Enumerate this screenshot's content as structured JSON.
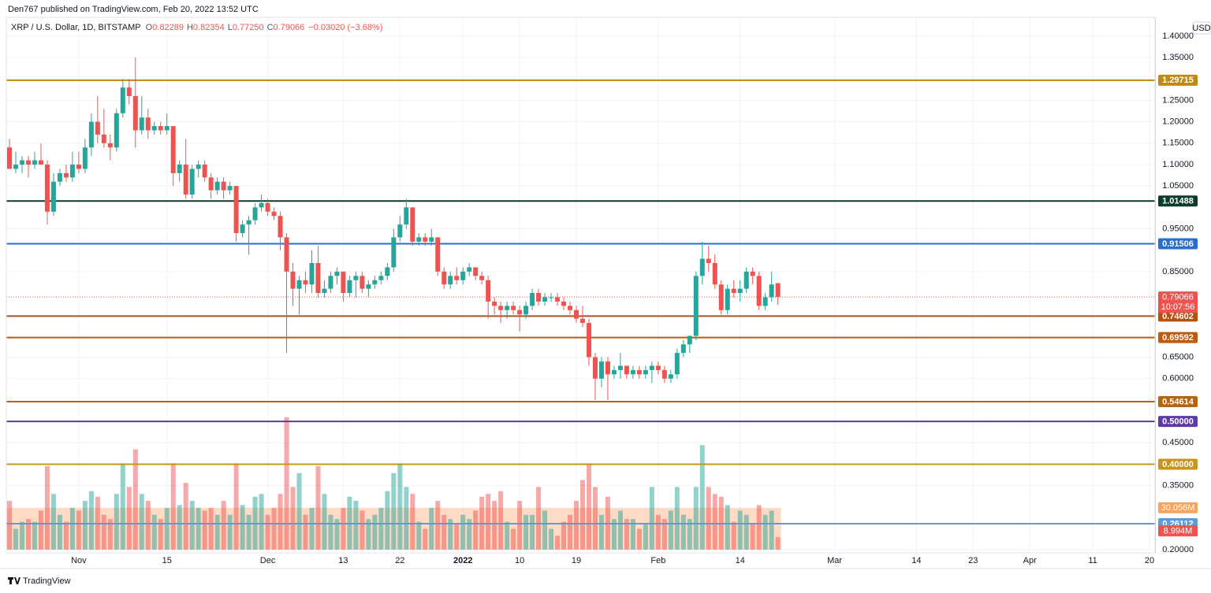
{
  "header": {
    "published": "Den767 published on TradingView.com, Feb 20, 2022 13:52 UTC",
    "brand": "TradingView"
  },
  "chart_data": {
    "type": "candlestick",
    "title": "XRP / U.S. Dollar, 1D, BITSTAMP",
    "currency": "USD",
    "ohlc_letters": [
      "O",
      "H",
      "L",
      "C"
    ],
    "legend_values": [
      "0.82289",
      "0.82354",
      "0.77250",
      "0.79066"
    ],
    "change_label": "−0.03020 (−3.68%)",
    "countdown": "10:07:56",
    "categories": [
      null,
      null,
      null,
      null,
      null,
      null,
      null,
      null,
      null,
      null,
      null,
      "Nov",
      null,
      null,
      null,
      null,
      null,
      null,
      null,
      null,
      null,
      null,
      null,
      null,
      null,
      "15",
      null,
      null,
      null,
      null,
      null,
      null,
      null,
      null,
      null,
      null,
      null,
      null,
      null,
      null,
      null,
      "Dec",
      null,
      null,
      null,
      null,
      null,
      null,
      null,
      null,
      null,
      null,
      null,
      "13",
      null,
      null,
      null,
      null,
      null,
      null,
      null,
      null,
      "22",
      null,
      null,
      null,
      null,
      null,
      null,
      null,
      null,
      null,
      "2022",
      null,
      null,
      null,
      null,
      null,
      null,
      null,
      null,
      "10",
      null,
      null,
      null,
      null,
      null,
      null,
      null,
      null,
      "19",
      null,
      null,
      null,
      null,
      null,
      null,
      null,
      null,
      null,
      null,
      null,
      null,
      "Feb",
      null,
      null,
      null,
      null,
      null,
      null,
      null,
      null,
      null,
      null,
      null,
      null,
      "14",
      null,
      null,
      null,
      null,
      null,
      null,
      null,
      null,
      null,
      null,
      null,
      null,
      null,
      null,
      "Mar",
      null,
      null,
      null,
      null,
      null,
      null,
      null,
      null,
      null,
      null,
      null,
      null,
      "14",
      null,
      null,
      null,
      null,
      null,
      null,
      null,
      null,
      "23",
      null,
      null,
      null,
      null,
      null,
      null,
      null,
      null,
      "Apr",
      null,
      null,
      null,
      null,
      null,
      null,
      null,
      null,
      null,
      "11",
      null,
      null,
      null,
      null,
      null,
      null,
      null,
      null,
      "20"
    ],
    "open": [
      1.14,
      1.09,
      1.1,
      1.11,
      1.1,
      1.11,
      1.1,
      0.99,
      1.06,
      1.08,
      1.07,
      1.1,
      1.09,
      1.14,
      1.2,
      1.17,
      1.15,
      1.14,
      1.22,
      1.28,
      1.26,
      1.18,
      1.21,
      1.18,
      1.19,
      1.18,
      1.19,
      1.08,
      1.1,
      1.03,
      1.09,
      1.1,
      1.07,
      1.04,
      1.06,
      1.04,
      1.05,
      0.94,
      0.96,
      0.97,
      1.0,
      1.01,
      0.99,
      0.98,
      0.93,
      0.85,
      0.81,
      0.83,
      0.82,
      0.87,
      0.8,
      0.81,
      0.84,
      0.85,
      0.8,
      0.83,
      0.84,
      0.81,
      0.82,
      0.83,
      0.84,
      0.86,
      0.93,
      0.96,
      1.0,
      0.92,
      0.93,
      0.92,
      0.93,
      0.85,
      0.82,
      0.84,
      0.83,
      0.85,
      0.86,
      0.84,
      0.83,
      0.78,
      0.77,
      0.76,
      0.77,
      0.76,
      0.75,
      0.77,
      0.8,
      0.78,
      0.79,
      0.79,
      0.78,
      0.77,
      0.76,
      0.74,
      0.73,
      0.65,
      0.6,
      0.64,
      0.61,
      0.62,
      0.63,
      0.61,
      0.62,
      0.61,
      0.62,
      0.63,
      0.62,
      0.6,
      0.61,
      0.66,
      0.68,
      0.7,
      0.84,
      0.88,
      0.87,
      0.82,
      0.76,
      0.81,
      0.8,
      0.81,
      0.85,
      0.84,
      0.77,
      0.79,
      0.82289,
      null,
      null,
      null,
      null,
      null,
      null,
      null,
      null,
      null,
      null,
      null,
      null,
      null,
      null,
      null,
      null,
      null,
      null,
      null,
      null,
      null,
      null,
      null,
      null,
      null,
      null,
      null,
      null,
      null,
      null,
      null,
      null,
      null,
      null,
      null,
      null,
      null,
      null,
      null,
      null,
      null,
      null,
      null,
      null,
      null,
      null,
      null,
      null,
      null,
      null,
      null,
      null,
      null,
      null,
      null,
      null,
      null,
      null,
      null
    ],
    "high": [
      1.16,
      1.13,
      1.12,
      1.12,
      1.13,
      1.15,
      1.11,
      1.08,
      1.09,
      1.1,
      1.13,
      1.13,
      1.16,
      1.22,
      1.26,
      1.23,
      1.17,
      1.23,
      1.3,
      1.3,
      1.35,
      1.26,
      1.23,
      1.2,
      1.2,
      1.22,
      1.19,
      1.11,
      1.16,
      1.1,
      1.11,
      1.11,
      1.08,
      1.07,
      1.07,
      1.06,
      1.05,
      0.97,
      0.98,
      1.01,
      1.03,
      1.02,
      1.0,
      0.99,
      0.94,
      0.87,
      0.84,
      0.85,
      0.9,
      0.91,
      0.83,
      0.85,
      0.86,
      0.85,
      0.84,
      0.85,
      0.85,
      0.83,
      0.84,
      0.85,
      0.87,
      0.95,
      0.98,
      1.02,
      1.0,
      0.94,
      0.94,
      0.95,
      0.93,
      0.86,
      0.85,
      0.86,
      0.86,
      0.87,
      0.86,
      0.85,
      0.84,
      0.79,
      0.78,
      0.78,
      0.78,
      0.77,
      0.78,
      0.81,
      0.81,
      0.8,
      0.8,
      0.8,
      0.79,
      0.78,
      0.77,
      0.77,
      0.74,
      0.66,
      0.65,
      0.65,
      0.63,
      0.66,
      0.63,
      0.63,
      0.63,
      0.63,
      0.64,
      0.64,
      0.63,
      0.62,
      0.67,
      0.69,
      0.7,
      0.85,
      0.92,
      0.91,
      0.89,
      0.83,
      0.82,
      0.83,
      0.83,
      0.86,
      0.86,
      0.85,
      0.8,
      0.85,
      0.82354,
      null,
      null,
      null,
      null,
      null,
      null,
      null,
      null,
      null,
      null,
      null,
      null,
      null,
      null,
      null,
      null,
      null,
      null,
      null,
      null,
      null,
      null,
      null,
      null,
      null,
      null,
      null,
      null,
      null,
      null,
      null,
      null,
      null,
      null,
      null,
      null,
      null,
      null,
      null,
      null,
      null,
      null,
      null,
      null,
      null,
      null,
      null,
      null,
      null,
      null,
      null,
      null,
      null,
      null,
      null,
      null,
      null,
      null,
      null
    ],
    "low": [
      1.09,
      1.08,
      1.08,
      1.07,
      1.09,
      1.1,
      0.96,
      0.98,
      1.05,
      1.06,
      1.06,
      1.08,
      1.08,
      1.12,
      1.15,
      1.14,
      1.11,
      1.13,
      1.21,
      1.24,
      1.14,
      1.17,
      1.16,
      1.17,
      1.17,
      1.17,
      1.05,
      1.06,
      1.02,
      1.02,
      1.07,
      1.06,
      1.02,
      1.03,
      1.02,
      1.03,
      0.92,
      0.93,
      0.89,
      0.96,
      0.99,
      0.98,
      0.97,
      0.9,
      0.66,
      0.77,
      0.75,
      0.8,
      0.8,
      0.79,
      0.79,
      0.8,
      0.82,
      0.78,
      0.79,
      0.79,
      0.8,
      0.79,
      0.81,
      0.82,
      0.83,
      0.85,
      0.92,
      0.95,
      0.91,
      0.91,
      0.91,
      0.91,
      0.84,
      0.81,
      0.81,
      0.82,
      0.82,
      0.84,
      0.83,
      0.82,
      0.74,
      0.75,
      0.73,
      0.74,
      0.75,
      0.71,
      0.74,
      0.76,
      0.77,
      0.77,
      0.78,
      0.77,
      0.76,
      0.75,
      0.73,
      0.72,
      0.63,
      0.55,
      0.58,
      0.55,
      0.6,
      0.6,
      0.6,
      0.6,
      0.6,
      0.6,
      0.59,
      0.61,
      0.59,
      0.59,
      0.6,
      0.65,
      0.66,
      0.69,
      0.82,
      0.85,
      0.81,
      0.75,
      0.75,
      0.79,
      0.78,
      0.8,
      0.82,
      0.76,
      0.76,
      0.78,
      0.7725,
      null,
      null,
      null,
      null,
      null,
      null,
      null,
      null,
      null,
      null,
      null,
      null,
      null,
      null,
      null,
      null,
      null,
      null,
      null,
      null,
      null,
      null,
      null,
      null,
      null,
      null,
      null,
      null,
      null,
      null,
      null,
      null,
      null,
      null,
      null,
      null,
      null,
      null,
      null,
      null,
      null,
      null,
      null,
      null,
      null,
      null,
      null,
      null,
      null,
      null,
      null,
      null,
      null,
      null,
      null,
      null,
      null,
      null,
      null
    ],
    "close": [
      1.09,
      1.1,
      1.11,
      1.1,
      1.11,
      1.1,
      0.99,
      1.06,
      1.08,
      1.07,
      1.1,
      1.09,
      1.14,
      1.2,
      1.17,
      1.15,
      1.14,
      1.22,
      1.28,
      1.26,
      1.18,
      1.21,
      1.18,
      1.19,
      1.18,
      1.19,
      1.08,
      1.1,
      1.03,
      1.09,
      1.1,
      1.07,
      1.04,
      1.06,
      1.04,
      1.05,
      0.94,
      0.96,
      0.97,
      1.0,
      1.01,
      0.99,
      0.98,
      0.93,
      0.85,
      0.81,
      0.83,
      0.82,
      0.87,
      0.8,
      0.81,
      0.84,
      0.85,
      0.8,
      0.83,
      0.84,
      0.81,
      0.82,
      0.83,
      0.84,
      0.86,
      0.93,
      0.96,
      1.0,
      0.92,
      0.93,
      0.92,
      0.93,
      0.85,
      0.82,
      0.84,
      0.83,
      0.85,
      0.86,
      0.84,
      0.83,
      0.78,
      0.77,
      0.76,
      0.77,
      0.76,
      0.75,
      0.77,
      0.8,
      0.78,
      0.79,
      0.79,
      0.78,
      0.77,
      0.76,
      0.74,
      0.73,
      0.65,
      0.6,
      0.64,
      0.61,
      0.62,
      0.63,
      0.61,
      0.62,
      0.61,
      0.62,
      0.63,
      0.62,
      0.6,
      0.61,
      0.66,
      0.68,
      0.7,
      0.84,
      0.88,
      0.87,
      0.82,
      0.76,
      0.81,
      0.8,
      0.81,
      0.85,
      0.84,
      0.77,
      0.79,
      0.82,
      0.79066,
      null,
      null,
      null,
      null,
      null,
      null,
      null,
      null,
      null,
      null,
      null,
      null,
      null,
      null,
      null,
      null,
      null,
      null,
      null,
      null,
      null,
      null,
      null,
      null,
      null,
      null,
      null,
      null,
      null,
      null,
      null,
      null,
      null,
      null,
      null,
      null,
      null,
      null,
      null,
      null,
      null,
      null,
      null,
      null,
      null,
      null,
      null,
      null,
      null,
      null,
      null,
      null,
      null,
      null,
      null,
      null,
      null,
      null,
      null
    ],
    "volume": [
      35,
      15,
      20,
      22,
      20,
      28,
      60,
      40,
      25,
      20,
      30,
      28,
      35,
      42,
      38,
      25,
      22,
      40,
      62,
      45,
      72,
      40,
      35,
      25,
      22,
      30,
      62,
      32,
      48,
      35,
      30,
      28,
      30,
      25,
      35,
      25,
      62,
      32,
      25,
      38,
      40,
      25,
      30,
      40,
      95,
      45,
      55,
      25,
      30,
      60,
      40,
      25,
      22,
      30,
      38,
      35,
      28,
      22,
      25,
      30,
      42,
      55,
      62,
      45,
      40,
      20,
      15,
      30,
      35,
      25,
      22,
      18,
      25,
      22,
      28,
      38,
      40,
      35,
      42,
      20,
      15,
      35,
      25,
      25,
      45,
      28,
      15,
      10,
      20,
      25,
      35,
      50,
      62,
      45,
      25,
      38,
      22,
      28,
      22,
      22,
      15,
      18,
      45,
      25,
      22,
      28,
      45,
      25,
      22,
      45,
      75,
      45,
      40,
      38,
      32,
      20,
      28,
      25,
      18,
      32,
      25,
      28,
      8.994,
      null,
      null,
      null,
      null,
      null,
      null,
      null,
      null,
      null,
      null,
      null,
      null,
      null,
      null,
      null,
      null,
      null,
      null,
      null,
      null,
      null,
      null,
      null,
      null,
      null,
      null,
      null,
      null,
      null,
      null,
      null,
      null,
      null,
      null,
      null,
      null,
      null,
      null,
      null,
      null,
      null,
      null,
      null,
      null,
      null,
      null,
      null,
      null,
      null,
      null,
      null,
      null,
      null,
      null,
      null,
      null,
      null,
      null,
      null
    ],
    "volume_value_labels": [
      null,
      null,
      null,
      null,
      null,
      null,
      null,
      null,
      null,
      null,
      null,
      null,
      null,
      null,
      null,
      null,
      null,
      null,
      null,
      null,
      null,
      null,
      null,
      null,
      null,
      null,
      null,
      null,
      null,
      null,
      null,
      null,
      null,
      null,
      null,
      null,
      null,
      null,
      null,
      null,
      null,
      null,
      null,
      null,
      null,
      null,
      null,
      null,
      null,
      null,
      null,
      null,
      null,
      null,
      null,
      null,
      null,
      null,
      null,
      null,
      null,
      null,
      null,
      null,
      null,
      null,
      null,
      null,
      null,
      null,
      null,
      null,
      null,
      null,
      null,
      null,
      null,
      null,
      null,
      null,
      null,
      null,
      null,
      null,
      null,
      null,
      null,
      null,
      null,
      null,
      null,
      null,
      null,
      null,
      null,
      null,
      null,
      null,
      null,
      null,
      null,
      null,
      null,
      null,
      null,
      null,
      null,
      null,
      null,
      null,
      null,
      null,
      null,
      null,
      null,
      null,
      null,
      null,
      null,
      null,
      null,
      null,
      "8.994M",
      null,
      null,
      null,
      null,
      null,
      null,
      null,
      null,
      null,
      null,
      null,
      null,
      null,
      null,
      null,
      null,
      null,
      null,
      null,
      null,
      null,
      null,
      null,
      null,
      null,
      null,
      null,
      null,
      null,
      null,
      null,
      null,
      null,
      null,
      null,
      null,
      null,
      null,
      null,
      null,
      null,
      null,
      null,
      null,
      null,
      null,
      null,
      null,
      null,
      null,
      null,
      null,
      null,
      null,
      null,
      null,
      null,
      null,
      null
    ],
    "volume_ma": {
      "value": 30.056,
      "label": "30.056M"
    },
    "up_color": "#26a69a",
    "down_color": "#ef5350",
    "levels": [
      {
        "value": 1.29715,
        "color": "#c08a12"
      },
      {
        "value": 1.01488,
        "color": "#0b3d2c"
      },
      {
        "value": 0.91506,
        "color": "#2a6fc9"
      },
      {
        "value": 0.74602,
        "color": "#b5500e"
      },
      {
        "value": 0.69592,
        "color": "#c0590c"
      },
      {
        "value": 0.54614,
        "color": "#b8640a"
      },
      {
        "value": 0.5,
        "label": "0.50000",
        "color": "#5e3aa8"
      },
      {
        "value": 0.4,
        "label": "0.40000",
        "color": "#c8961e"
      },
      {
        "value": 0.26112,
        "color": "#5b9be0"
      }
    ],
    "ylim": [
      0.193,
      1.444
    ],
    "yticks": [
      {
        "value": 1.4,
        "label": "1.40000"
      },
      {
        "value": 1.35,
        "label": "1.35000"
      },
      {
        "value": 1.25,
        "label": "1.25000"
      },
      {
        "value": 1.2,
        "label": "1.20000"
      },
      {
        "value": 1.15,
        "label": "1.15000"
      },
      {
        "value": 1.1,
        "label": "1.10000"
      },
      {
        "value": 1.05,
        "label": "1.05000"
      },
      {
        "value": 0.95,
        "label": "0.95000"
      },
      {
        "value": 0.85,
        "label": "0.85000"
      },
      {
        "value": 0.65,
        "label": "0.65000"
      },
      {
        "value": 0.6,
        "label": "0.60000"
      },
      {
        "value": 0.45,
        "label": "0.45000"
      },
      {
        "value": 0.35,
        "label": "0.35000"
      },
      {
        "value": 0.2,
        "label": "0.20000"
      }
    ],
    "grid": true
  }
}
